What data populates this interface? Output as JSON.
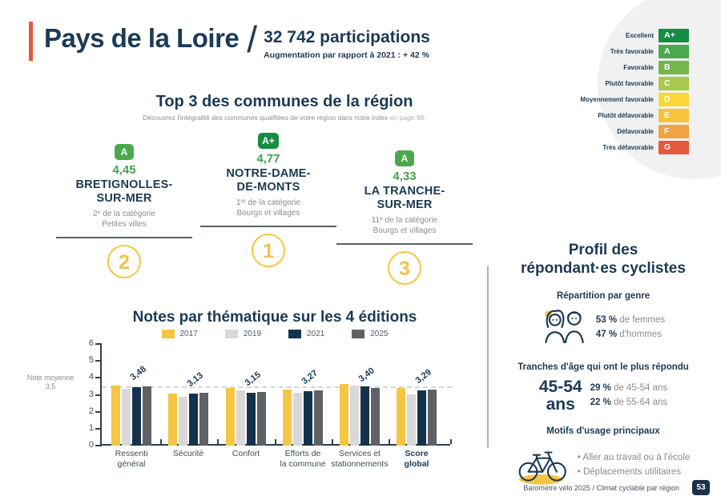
{
  "header": {
    "title": "Pays de la Loire",
    "separator": "/",
    "participations": "32 742 participations",
    "evolution": "Augmentation par rapport à 2021 : + 42 %"
  },
  "rating_scale": {
    "rows": [
      {
        "label": "Excellent",
        "grade": "A+",
        "color": "#168c42"
      },
      {
        "label": "Très favorable",
        "grade": "A",
        "color": "#4aa94d"
      },
      {
        "label": "Favorable",
        "grade": "B",
        "color": "#73b74c"
      },
      {
        "label": "Plutôt favorable",
        "grade": "C",
        "color": "#a9c94d"
      },
      {
        "label": "Moyennement favorable",
        "grade": "D",
        "color": "#f8d836"
      },
      {
        "label": "Plutôt défavorable",
        "grade": "E",
        "color": "#f6c33b"
      },
      {
        "label": "Défavorable",
        "grade": "F",
        "color": "#f0a344"
      },
      {
        "label": "Très défavorable",
        "grade": "G",
        "color": "#e4593b"
      }
    ]
  },
  "top3": {
    "title": "Top 3 des communes de la région",
    "subtitle": "Découvrez l'intégralité des communes qualifiées de votre région dans notre index",
    "subtitle_link": "en page 98.",
    "communes": [
      {
        "rank": "2",
        "grade": "A",
        "grade_color": "#4aa94d",
        "score": "4,45",
        "name_line1": "BRETIGNOLLES-",
        "name_line2": "SUR-MER",
        "category_line1": "2ᵉ de la catégorie",
        "category_line2": "Petites villes"
      },
      {
        "rank": "1",
        "grade": "A+",
        "grade_color": "#168c42",
        "score": "4,77",
        "name_line1": "NOTRE-DAME-",
        "name_line2": "DE-MONTS",
        "category_line1": "1ʳᵉ de la catégorie",
        "category_line2": "Bourgs et villages"
      },
      {
        "rank": "3",
        "grade": "A",
        "grade_color": "#4aa94d",
        "score": "4,33",
        "name_line1": "LA TRANCHE-",
        "name_line2": "SUR-MER",
        "category_line1": "11ᵉ de la catégorie",
        "category_line2": "Bourgs et villages"
      }
    ]
  },
  "chart_data": {
    "type": "bar",
    "title": "Notes par thématique sur les 4 éditions",
    "categories": [
      "Ressenti\ngénéral",
      "Sécurité",
      "Confort",
      "Efforts de\nla commune",
      "Services et\nstationnements",
      "Score\nglobal"
    ],
    "bold_category": "Score\nglobal",
    "series": [
      {
        "name": "2017",
        "color": "#f5c643",
        "values": [
          3.55,
          3.05,
          3.41,
          3.3,
          3.65,
          3.38
        ]
      },
      {
        "name": "2019",
        "color": "#d8d8d8",
        "values": [
          3.36,
          2.9,
          3.24,
          3.13,
          3.56,
          3.03
        ]
      },
      {
        "name": "2021",
        "color": "#14324b",
        "values": [
          3.43,
          3.05,
          3.14,
          3.23,
          3.51,
          3.26
        ]
      },
      {
        "name": "2025",
        "color": "#5e6266",
        "values": [
          3.48,
          3.13,
          3.15,
          3.27,
          3.4,
          3.29
        ]
      }
    ],
    "value_labels": [
      "3,48",
      "3,13",
      "3,15",
      "3,27",
      "3,40",
      "3,29"
    ],
    "ylim": [
      0,
      6
    ],
    "yticks": [
      0,
      1,
      2,
      3,
      4,
      5,
      6
    ],
    "grid": "off",
    "legend_position": "top",
    "reference_line": {
      "value": 3.5,
      "label_line1": "Note moyenne",
      "label_line2": "3,5"
    }
  },
  "profile": {
    "title_line1": "Profil des",
    "title_line2": "répondant·es cyclistes",
    "gender": {
      "heading": "Répartition par genre",
      "stats": [
        {
          "value": "53 %",
          "text": "de femmes"
        },
        {
          "value": "47 %",
          "text": "d'hommes"
        }
      ]
    },
    "age": {
      "heading": "Tranches d'âge qui ont le plus répondu",
      "highlight_line1": "45-54",
      "highlight_line2": "ans",
      "stats": [
        {
          "value": "29 %",
          "text": "de 45-54 ans"
        },
        {
          "value": "22 %",
          "text": "de 55-64 ans"
        }
      ]
    },
    "usage": {
      "heading": "Motifs d'usage principaux",
      "items": [
        "Aller au travail ou à l'école",
        "Déplacements utilitaires"
      ]
    }
  },
  "footer": {
    "text": "Baromètre vélo 2025 / Climat cyclable par région",
    "page_number": "53"
  }
}
